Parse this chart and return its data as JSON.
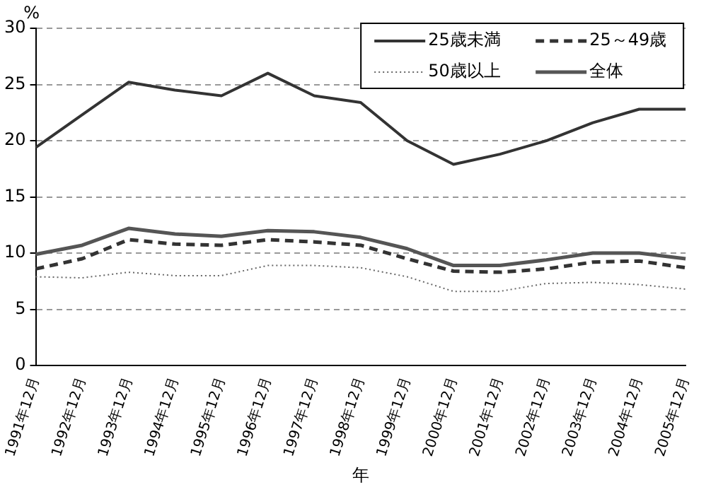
{
  "chart_data": {
    "type": "line",
    "xlabel": "年",
    "ylabel": "%",
    "categories": [
      "1991年12月",
      "1992年12月",
      "1993年12月",
      "1994年12月",
      "1995年12月",
      "1996年12月",
      "1997年12月",
      "1998年12月",
      "1999年12月",
      "2000年12月",
      "2001年12月",
      "2002年12月",
      "2003年12月",
      "2004年12月",
      "2005年12月"
    ],
    "series": [
      {
        "name": "25歳未満",
        "color": "#333333",
        "line_style": "solid",
        "values": [
          19.4,
          22.3,
          25.2,
          24.5,
          24.0,
          26.0,
          24.0,
          23.4,
          20.0,
          17.9,
          18.8,
          20.0,
          21.6,
          22.8,
          22.8
        ]
      },
      {
        "name": "25～49歳",
        "color": "#333333",
        "line_style": "dashed",
        "values": [
          8.6,
          9.5,
          11.2,
          10.8,
          10.7,
          11.2,
          11.0,
          10.7,
          9.5,
          8.4,
          8.3,
          8.6,
          9.2,
          9.3,
          8.7
        ]
      },
      {
        "name": "50歳以上",
        "color": "#666666",
        "line_style": "dotted",
        "values": [
          7.9,
          7.8,
          8.3,
          8.0,
          8.0,
          8.9,
          8.9,
          8.7,
          7.9,
          6.6,
          6.6,
          7.3,
          7.4,
          7.2,
          6.8
        ]
      },
      {
        "name": "全体",
        "color": "#555555",
        "line_style": "solid",
        "values": [
          9.9,
          10.7,
          12.2,
          11.7,
          11.5,
          12.0,
          11.9,
          11.4,
          10.4,
          8.9,
          8.9,
          9.4,
          10.0,
          10.0,
          9.5
        ]
      }
    ],
    "ylim": [
      0,
      30
    ],
    "yticks": [
      0,
      5,
      10,
      15,
      20,
      25,
      30
    ],
    "grid": "y",
    "legend": "top right",
    "marker": "none"
  }
}
